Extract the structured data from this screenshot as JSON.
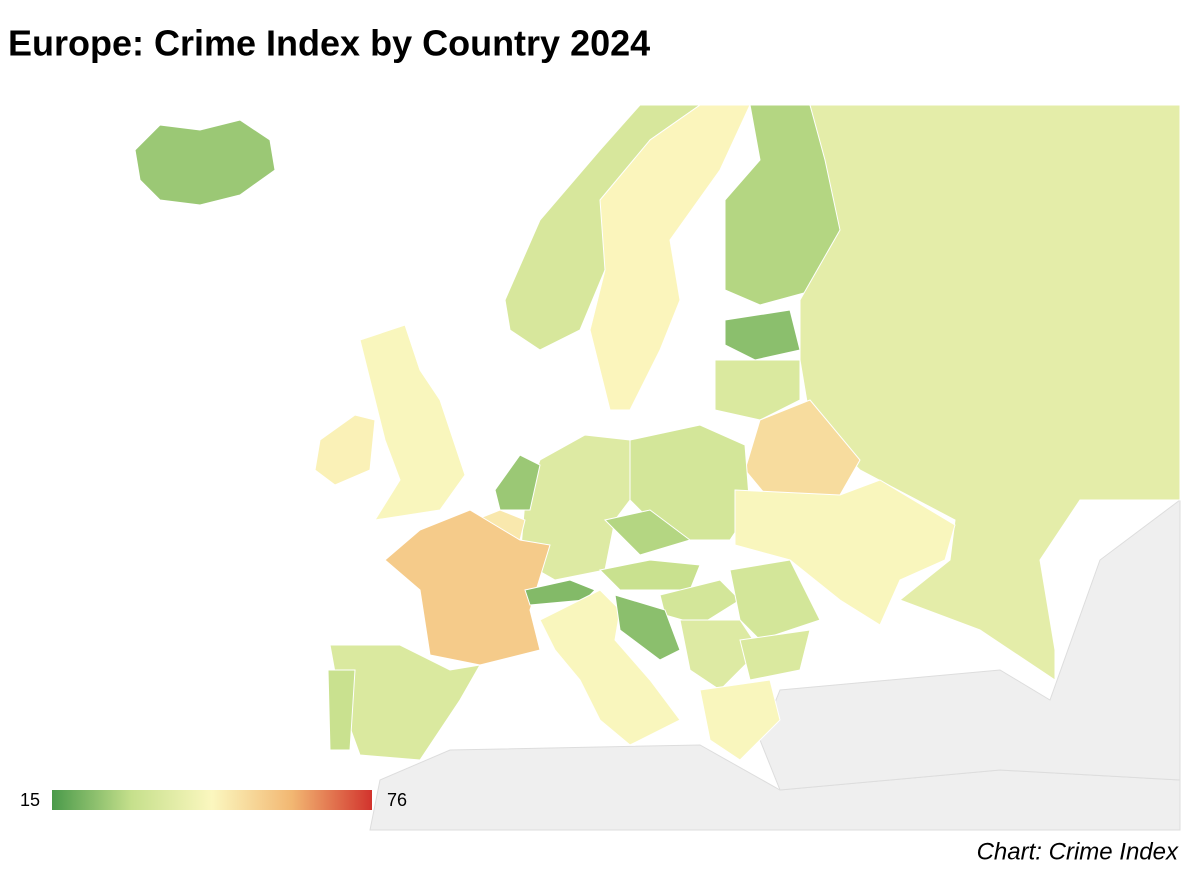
{
  "chart_data": {
    "type": "choropleth",
    "title": "Europe: Crime Index by Country 2024",
    "source": "Chart: Crime Index",
    "scale": {
      "min": 15,
      "max": 76,
      "colors": [
        "#4a9a4a",
        "#c6e08c",
        "#fbf7bf",
        "#f2b772",
        "#d2332d"
      ]
    },
    "no_data_color": "#efefef",
    "regions": [
      {
        "value": 25
      },
      {
        "value": 47
      },
      {
        "value": 45
      },
      {
        "value": 35
      },
      {
        "value": 46
      },
      {
        "value": 28
      },
      {
        "value": 39
      },
      {
        "value": 23
      },
      {
        "value": 36
      },
      {
        "value": 52
      },
      {
        "value": 34
      },
      {
        "value": 45
      },
      {
        "value": 37
      },
      {
        "value": 25
      },
      {
        "value": 49
      },
      {
        "value": 56
      },
      {
        "value": 22
      },
      {
        "value": 36
      },
      {
        "value": 31
      },
      {
        "value": 45
      },
      {
        "value": 28
      },
      {
        "value": 31
      },
      {
        "value": 34
      },
      {
        "value": 23
      },
      {
        "value": 34
      },
      {
        "value": 37
      },
      {
        "value": 36
      },
      {
        "value": 45
      }
    ]
  }
}
